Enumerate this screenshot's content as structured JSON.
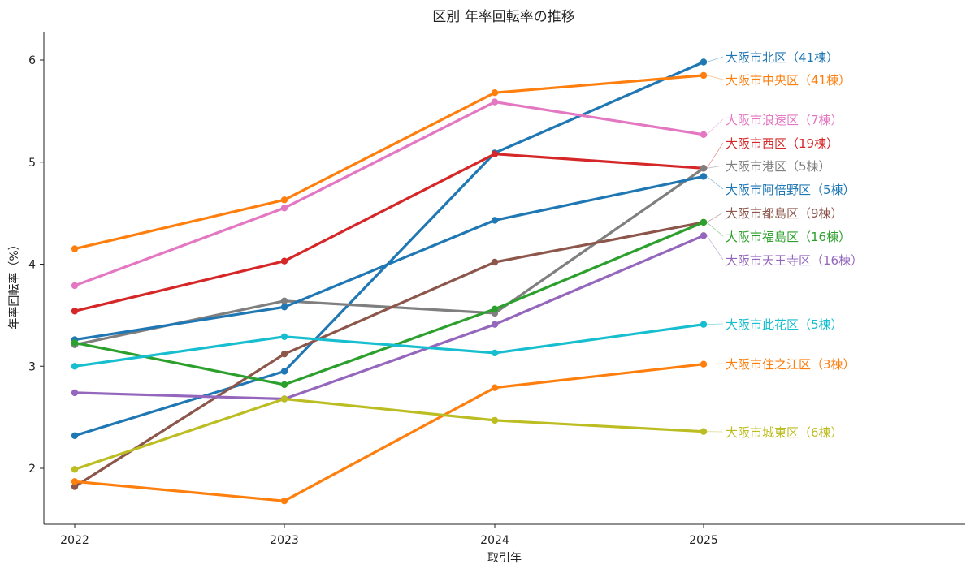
{
  "chart_data": {
    "type": "line",
    "title": "区別 年率回転率の推移",
    "xlabel": "取引年",
    "ylabel": "年率回転率（%）",
    "x": [
      "2022",
      "2023",
      "2024",
      "2025"
    ],
    "yticks": [
      "2",
      "3",
      "4",
      "5",
      "6"
    ],
    "ylim": [
      1.5,
      6.27
    ],
    "grid": false,
    "series": [
      {
        "name": "大阪市北区（41棟）",
        "color": "#1f77b4",
        "values": [
          2.32,
          2.95,
          5.09,
          5.98
        ]
      },
      {
        "name": "大阪市中央区（41棟）",
        "color": "#ff7f0e",
        "values": [
          4.15,
          4.63,
          5.68,
          5.85
        ]
      },
      {
        "name": "大阪市浪速区（7棟）",
        "color": "#e377c2",
        "values": [
          3.79,
          4.55,
          5.59,
          5.27
        ]
      },
      {
        "name": "大阪市西区（19棟）",
        "color": "#d62728",
        "values": [
          3.54,
          4.03,
          5.08,
          4.94
        ]
      },
      {
        "name": "大阪市港区（5棟）",
        "color": "#7f7f7f",
        "values": [
          3.21,
          3.64,
          3.52,
          4.94
        ]
      },
      {
        "name": "大阪市阿倍野区（5棟）",
        "color": "#1f77b4",
        "values": [
          3.26,
          3.58,
          4.43,
          4.86
        ]
      },
      {
        "name": "大阪市都島区（9棟）",
        "color": "#8c564b",
        "values": [
          1.82,
          3.12,
          4.02,
          4.41
        ]
      },
      {
        "name": "大阪市福島区（16棟）",
        "color": "#2ca02c",
        "values": [
          3.23,
          2.82,
          3.56,
          4.41
        ]
      },
      {
        "name": "大阪市天王寺区（16棟）",
        "color": "#9467bd",
        "values": [
          2.74,
          2.68,
          3.41,
          4.28
        ]
      },
      {
        "name": "大阪市此花区（5棟）",
        "color": "#17becf",
        "values": [
          3.0,
          3.29,
          3.13,
          3.41
        ]
      },
      {
        "name": "大阪市住之江区（3棟）",
        "color": "#ff7f0e",
        "values": [
          1.87,
          1.68,
          2.79,
          3.02
        ]
      },
      {
        "name": "大阪市城東区（6棟）",
        "color": "#bcbd22",
        "values": [
          1.99,
          2.68,
          2.47,
          2.36
        ]
      }
    ]
  }
}
